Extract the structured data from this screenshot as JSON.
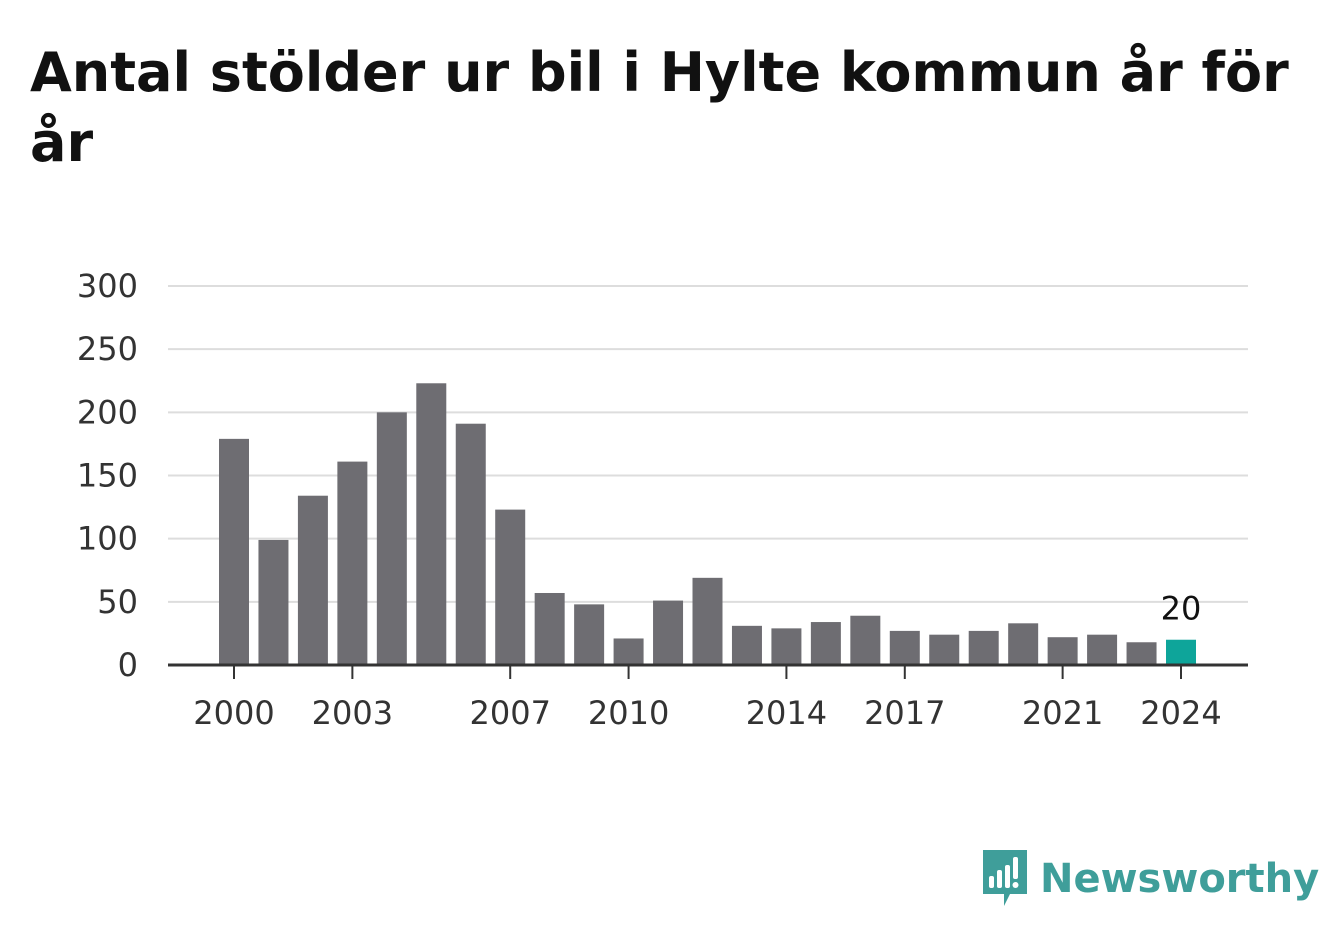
{
  "brand": {
    "name": "Newsworthy",
    "color": "#3f9e9a"
  },
  "colors": {
    "bar": "#6e6d72",
    "highlight": "#0ea59a",
    "grid": "#dddddd",
    "axis": "#333333"
  },
  "chart_data": {
    "type": "bar",
    "title": "Antal stölder ur bil i Hylte kommun år för år",
    "xlabel": "",
    "ylabel": "",
    "categories": [
      "2000",
      "2001",
      "2002",
      "2003",
      "2004",
      "2005",
      "2006",
      "2007",
      "2008",
      "2009",
      "2010",
      "2011",
      "2012",
      "2013",
      "2014",
      "2015",
      "2016",
      "2017",
      "2018",
      "2019",
      "2020",
      "2021",
      "2022",
      "2023",
      "2024"
    ],
    "values": [
      179,
      99,
      134,
      161,
      200,
      223,
      191,
      123,
      57,
      48,
      21,
      51,
      69,
      31,
      29,
      34,
      39,
      27,
      24,
      27,
      33,
      22,
      24,
      18,
      20
    ],
    "x_tick_labels": [
      "2000",
      "2003",
      "2007",
      "2010",
      "2014",
      "2017",
      "2021",
      "2024"
    ],
    "y_ticks": [
      0,
      50,
      100,
      150,
      200,
      250,
      300
    ],
    "ylim": [
      0,
      300
    ],
    "grid": true,
    "legend": "none",
    "highlight": {
      "category": "2024",
      "label": "20"
    }
  }
}
